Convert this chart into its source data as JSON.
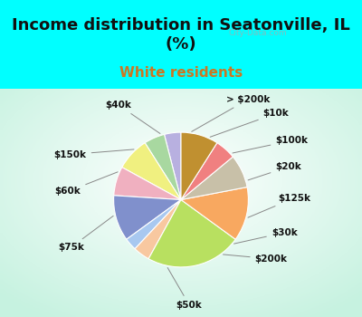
{
  "title": "Income distribution in Seatonville, IL\n(%)",
  "subtitle": "White residents",
  "bg_color": "#00FFFF",
  "chart_bg_gradient": true,
  "labels": [
    "> $200k",
    "$10k",
    "$100k",
    "$20k",
    "$125k",
    "$30k",
    "$200k",
    "$50k",
    "$75k",
    "$60k",
    "$150k",
    "$40k"
  ],
  "values": [
    4,
    5,
    8,
    7,
    11,
    3,
    4,
    23,
    13,
    8,
    5,
    9
  ],
  "colors": [
    "#b8b0e0",
    "#a8d8a0",
    "#f0f080",
    "#f0b0c0",
    "#8090cc",
    "#a8c8f0",
    "#f8c8a0",
    "#b8e060",
    "#f8a860",
    "#c8c0a8",
    "#f08080",
    "#c09030"
  ],
  "startangle": 90,
  "wedge_edge_color": "white",
  "label_fontsize": 7.5,
  "title_fontsize": 13,
  "subtitle_fontsize": 11,
  "subtitle_color": "#cc7722",
  "title_color": "#111111",
  "watermark": "City-Data.com"
}
